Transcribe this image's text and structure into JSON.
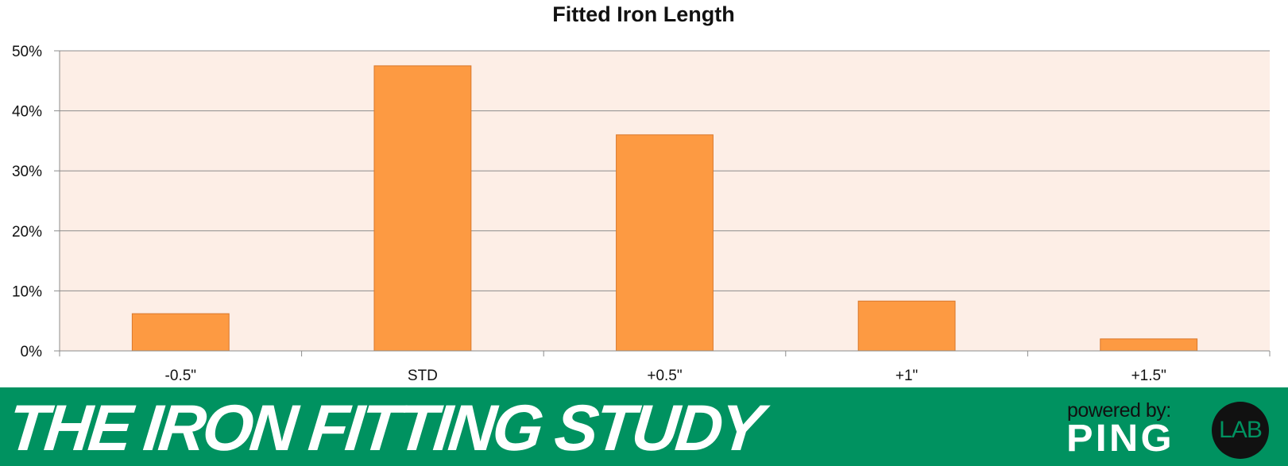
{
  "chart_data": {
    "type": "bar",
    "title": "Fitted Iron Length",
    "categories": [
      "-0.5\"",
      "STD",
      "+0.5\"",
      "+1\"",
      "+1.5\""
    ],
    "values": [
      6.2,
      47.5,
      36.0,
      8.3,
      2.0
    ],
    "ylim": [
      0,
      50
    ],
    "yticks": [
      0,
      10,
      20,
      30,
      40,
      50
    ],
    "ytick_suffix": "%",
    "grid": true,
    "legend": "none",
    "colors": {
      "bar_fill": "#fd9a42",
      "bar_stroke": "#d9782c",
      "plot_background": "#fdeee6",
      "gridline": "#8c8c8c",
      "axis": "#8c8c8c"
    }
  },
  "banner": {
    "title": "THE IRON FITTING STUDY",
    "powered_by": "powered by:",
    "logo_text": "PING",
    "badge_text": "LAB",
    "colors": {
      "background": "#009260",
      "title": "#ffffff",
      "badge": "#111111"
    }
  }
}
